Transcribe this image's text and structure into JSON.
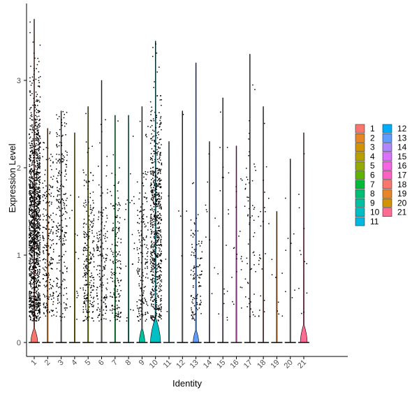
{
  "chart_data": {
    "type": "violin",
    "xlabel": "Identity",
    "ylabel": "Expression Level",
    "categories": [
      "1",
      "2",
      "3",
      "4",
      "5",
      "6",
      "7",
      "8",
      "9",
      "10",
      "11",
      "12",
      "13",
      "14",
      "15",
      "16",
      "17",
      "18",
      "19",
      "20",
      "21"
    ],
    "ylim": [
      -0.2,
      3.9
    ],
    "y_ticks": [
      "0",
      "1",
      "2",
      "3"
    ],
    "y_tick_values": [
      0,
      1,
      2,
      3
    ],
    "grid": false,
    "legend_position": "right",
    "colors": [
      "#F8766D",
      "#E88526",
      "#D39200",
      "#B79F00",
      "#93AA00",
      "#5EB300",
      "#00BA38",
      "#00BF74",
      "#00C19F",
      "#00BFC4",
      "#00B9E3",
      "#00ADFA",
      "#619CFF",
      "#AE87FF",
      "#DB72FB",
      "#F564E3",
      "#FF61C3",
      "#F8766D",
      "#E88526",
      "#D39200",
      "#FF6C91"
    ],
    "series": [
      {
        "name": "1",
        "max": 3.7,
        "expressing_cells": 1400,
        "expr_mean": 1.35,
        "expr_sd": 0.75,
        "zero_peak": 0.16,
        "zero_width": 0.55
      },
      {
        "name": "2",
        "max": 2.45,
        "expressing_cells": 240,
        "expr_mean": 1.1,
        "expr_sd": 0.6,
        "zero_peak": 0.02,
        "zero_width": 0.08
      },
      {
        "name": "3",
        "max": 2.65,
        "expressing_cells": 230,
        "expr_mean": 1.5,
        "expr_sd": 0.7,
        "zero_peak": 0.02,
        "zero_width": 0.08
      },
      {
        "name": "4",
        "max": 2.4,
        "expressing_cells": 15,
        "expr_mean": 0.8,
        "expr_sd": 0.6,
        "zero_peak": 0.02,
        "zero_width": 0.05
      },
      {
        "name": "5",
        "max": 2.7,
        "expressing_cells": 250,
        "expr_mean": 0.95,
        "expr_sd": 0.6,
        "zero_peak": 0.02,
        "zero_width": 0.08
      },
      {
        "name": "6",
        "max": 3.0,
        "expressing_cells": 170,
        "expr_mean": 0.85,
        "expr_sd": 0.6,
        "zero_peak": 0.02,
        "zero_width": 0.08
      },
      {
        "name": "7",
        "max": 2.6,
        "expressing_cells": 170,
        "expr_mean": 0.9,
        "expr_sd": 0.6,
        "zero_peak": 0.02,
        "zero_width": 0.08
      },
      {
        "name": "8",
        "max": 2.6,
        "expressing_cells": 20,
        "expr_mean": 1.3,
        "expr_sd": 0.7,
        "zero_peak": 0.02,
        "zero_width": 0.05
      },
      {
        "name": "9",
        "max": 2.7,
        "expressing_cells": 180,
        "expr_mean": 0.9,
        "expr_sd": 0.6,
        "zero_peak": 0.16,
        "zero_width": 0.45
      },
      {
        "name": "10",
        "max": 3.45,
        "expressing_cells": 700,
        "expr_mean": 1.35,
        "expr_sd": 0.7,
        "zero_peak": 0.28,
        "zero_width": 0.8
      },
      {
        "name": "11",
        "max": 2.3,
        "expressing_cells": 3,
        "expr_mean": 1.0,
        "expr_sd": 0.5,
        "zero_peak": 0.02,
        "zero_width": 0.05
      },
      {
        "name": "12",
        "max": 2.65,
        "expressing_cells": 5,
        "expr_mean": 1.5,
        "expr_sd": 0.6,
        "zero_peak": 0.02,
        "zero_width": 0.05
      },
      {
        "name": "13",
        "max": 3.2,
        "expressing_cells": 110,
        "expr_mean": 0.75,
        "expr_sd": 0.45,
        "zero_peak": 0.14,
        "zero_width": 0.45
      },
      {
        "name": "14",
        "max": 2.3,
        "expressing_cells": 10,
        "expr_mean": 1.5,
        "expr_sd": 0.6,
        "zero_peak": 0.02,
        "zero_width": 0.05
      },
      {
        "name": "15",
        "max": 2.8,
        "expressing_cells": 20,
        "expr_mean": 1.3,
        "expr_sd": 0.7,
        "zero_peak": 0.02,
        "zero_width": 0.05
      },
      {
        "name": "16",
        "max": 2.25,
        "expressing_cells": 22,
        "expr_mean": 1.0,
        "expr_sd": 0.6,
        "zero_peak": 0.02,
        "zero_width": 0.05
      },
      {
        "name": "17",
        "max": 3.3,
        "expressing_cells": 60,
        "expr_mean": 1.3,
        "expr_sd": 0.7,
        "zero_peak": 0.02,
        "zero_width": 0.05
      },
      {
        "name": "18",
        "max": 2.7,
        "expressing_cells": 25,
        "expr_mean": 1.2,
        "expr_sd": 0.7,
        "zero_peak": 0.02,
        "zero_width": 0.05
      },
      {
        "name": "19",
        "max": 1.5,
        "expressing_cells": 8,
        "expr_mean": 0.5,
        "expr_sd": 0.4,
        "zero_peak": 0.02,
        "zero_width": 0.05
      },
      {
        "name": "20",
        "max": 2.1,
        "expressing_cells": 8,
        "expr_mean": 1.0,
        "expr_sd": 0.6,
        "zero_peak": 0.02,
        "zero_width": 0.05
      },
      {
        "name": "21",
        "max": 2.4,
        "expressing_cells": 12,
        "expr_mean": 1.0,
        "expr_sd": 0.7,
        "zero_peak": 0.2,
        "zero_width": 0.55
      }
    ]
  }
}
